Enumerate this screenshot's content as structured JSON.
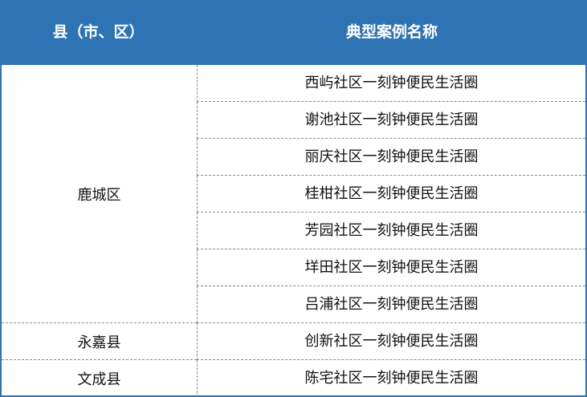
{
  "header": {
    "county": "县（市、区）",
    "case_name": "典型案例名称"
  },
  "groups": [
    {
      "county": "鹿城区",
      "cases": [
        "西屿社区一刻钟便民生活圈",
        "谢池社区一刻钟便民生活圈",
        "丽庆社区一刻钟便民生活圈",
        "桂柑社区一刻钟便民生活圈",
        "芳园社区一刻钟便民生活圈",
        "垟田社区一刻钟便民生活圈",
        "吕浦社区一刻钟便民生活圈"
      ]
    },
    {
      "county": "永嘉县",
      "cases": [
        "创新社区一刻钟便民生活圈"
      ]
    },
    {
      "county": "文成县",
      "cases": [
        "陈宅社区一刻钟便民生活圈"
      ]
    }
  ],
  "colors": {
    "header_bg": "#2e74b5",
    "border": "#2e74b5"
  }
}
